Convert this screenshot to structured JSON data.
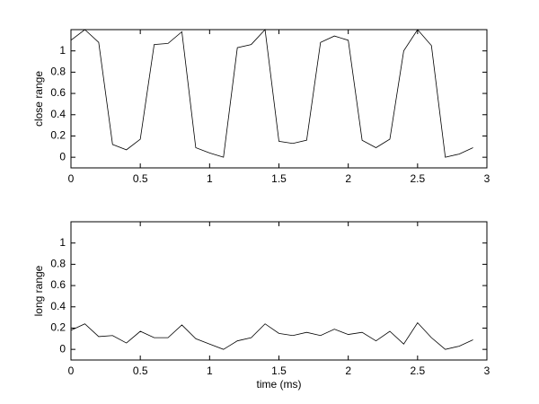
{
  "chart_data": [
    {
      "type": "line",
      "ylabel": "close range",
      "x": [
        0,
        0.1,
        0.2,
        0.3,
        0.4,
        0.5,
        0.6,
        0.7,
        0.8,
        0.9,
        1.0,
        1.1,
        1.2,
        1.3,
        1.4,
        1.5,
        1.6,
        1.7,
        1.8,
        1.9,
        2.0,
        2.1,
        2.2,
        2.3,
        2.4,
        2.5,
        2.6,
        2.7,
        2.8,
        2.9
      ],
      "series": [
        {
          "color": "#000000",
          "values": [
            1.1,
            1.2,
            1.08,
            0.12,
            0.07,
            0.17,
            1.06,
            1.07,
            1.18,
            0.09,
            0.04,
            0.0,
            1.03,
            1.06,
            1.2,
            0.15,
            0.13,
            0.16,
            1.08,
            1.14,
            1.1,
            0.16,
            0.09,
            0.17,
            1.0,
            1.2,
            1.05,
            0.0,
            0.03,
            0.09
          ]
        }
      ],
      "xlim": [
        0,
        3
      ],
      "xticks": [
        0,
        0.5,
        1,
        1.5,
        2,
        2.5,
        3
      ],
      "ylim": [
        -0.1,
        1.2
      ],
      "yticks": [
        0,
        0.2,
        0.4,
        0.6,
        0.8,
        1
      ]
    },
    {
      "type": "line",
      "ylabel": "long range",
      "xlabel": "time (ms)",
      "x": [
        0,
        0.1,
        0.2,
        0.3,
        0.4,
        0.5,
        0.6,
        0.7,
        0.8,
        0.9,
        1.0,
        1.1,
        1.2,
        1.3,
        1.4,
        1.5,
        1.6,
        1.7,
        1.8,
        1.9,
        2.0,
        2.1,
        2.2,
        2.3,
        2.4,
        2.5,
        2.6,
        2.7,
        2.8,
        2.9
      ],
      "series": [
        {
          "color": "#000000",
          "values": [
            0.18,
            0.24,
            0.12,
            0.13,
            0.06,
            0.17,
            0.11,
            0.11,
            0.23,
            0.1,
            0.05,
            0.0,
            0.08,
            0.11,
            0.24,
            0.15,
            0.13,
            0.16,
            0.13,
            0.19,
            0.14,
            0.16,
            0.08,
            0.17,
            0.05,
            0.25,
            0.11,
            0.0,
            0.03,
            0.09
          ]
        }
      ],
      "xlim": [
        0,
        3
      ],
      "xticks": [
        0,
        0.5,
        1,
        1.5,
        2,
        2.5,
        3
      ],
      "ylim": [
        -0.1,
        1.2
      ],
      "yticks": [
        0,
        0.2,
        0.4,
        0.6,
        0.8,
        1
      ]
    }
  ]
}
